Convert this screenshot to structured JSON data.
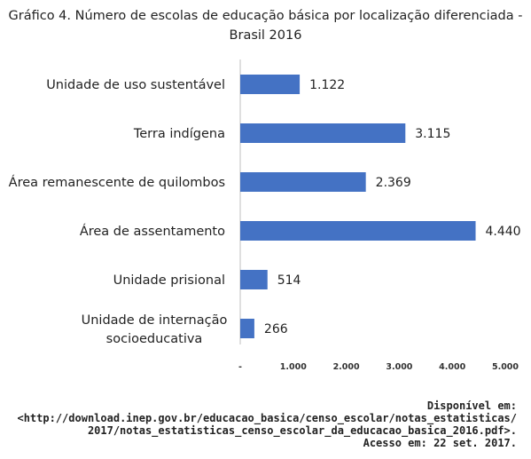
{
  "chart_data": {
    "type": "bar",
    "orientation": "horizontal",
    "title_line1": "Gráfico 4. Número de escolas de educação básica por localização diferenciada -",
    "title_line2": "Brasil 2016",
    "categories": [
      [
        "Unidade de uso sustentável"
      ],
      [
        "Terra indígena"
      ],
      [
        "Área remanescente de quilombos"
      ],
      [
        "Área de assentamento"
      ],
      [
        "Unidade prisional"
      ],
      [
        "Unidade de internação",
        "socioeducativa"
      ]
    ],
    "values": [
      1122,
      3115,
      2369,
      4440,
      514,
      266
    ],
    "value_labels": [
      "1.122",
      "3.115",
      "2.369",
      "4.440",
      "514",
      "266"
    ],
    "xlim": [
      0,
      5000
    ],
    "x_ticks": [
      0,
      1000,
      2000,
      3000,
      4000,
      5000
    ],
    "x_tick_labels": [
      "-",
      "1.000",
      "2.000",
      "3.000",
      "4.000",
      "5.000"
    ],
    "bar_color": "#4472c4",
    "grid": false,
    "legend": "none"
  },
  "source": {
    "line1": "Disponível em:",
    "line2": "<http://download.inep.gov.br/educacao_basica/censo_escolar/notas_estatisticas/",
    "line3": "2017/notas_estatisticas_censo_escolar_da_educacao_basica_2016.pdf>.",
    "line4": "Acesso em: 22 set. 2017."
  }
}
